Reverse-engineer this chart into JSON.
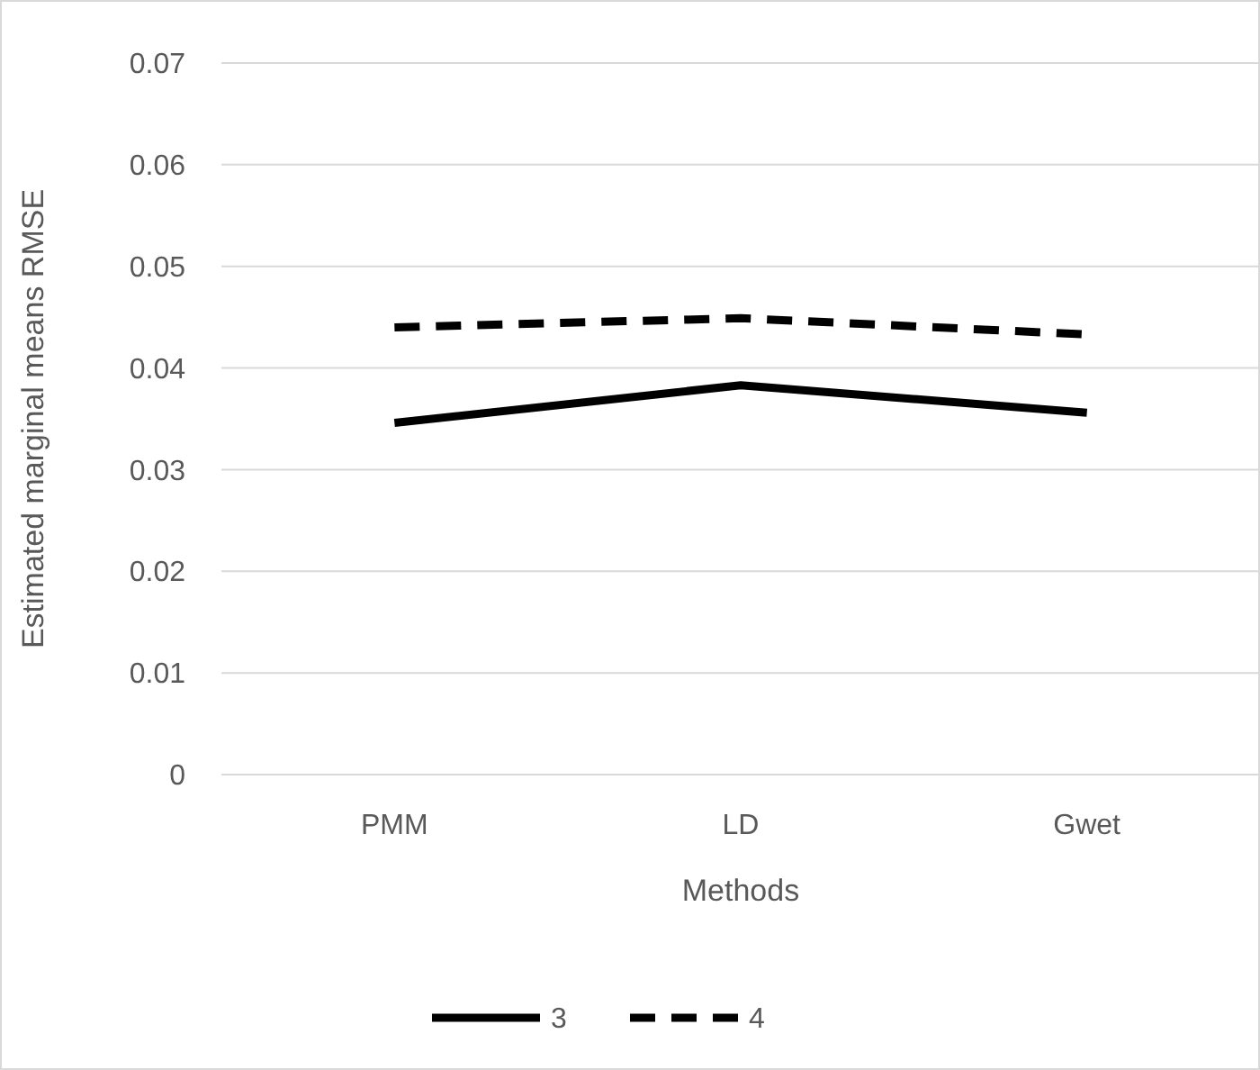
{
  "chart_data": {
    "type": "line",
    "xlabel": "Methods",
    "ylabel": "Estimated marginal means RMSE",
    "categories": [
      "PMM",
      "LD",
      "Gwet"
    ],
    "series": [
      {
        "name": "3",
        "color": "#000000",
        "line_style": "solid",
        "values": [
          0.0346,
          0.0383,
          0.0356
        ]
      },
      {
        "name": "4",
        "color": "#000000",
        "line_style": "dashed",
        "values": [
          0.044,
          0.0449,
          0.0433
        ]
      }
    ],
    "ylim": [
      0,
      0.07
    ],
    "yticks": [
      {
        "value": 0,
        "label": "0"
      },
      0.01,
      0.02,
      0.03,
      0.04,
      0.05,
      0.06,
      0.07
    ],
    "grid": "y",
    "legend": "bottom"
  }
}
